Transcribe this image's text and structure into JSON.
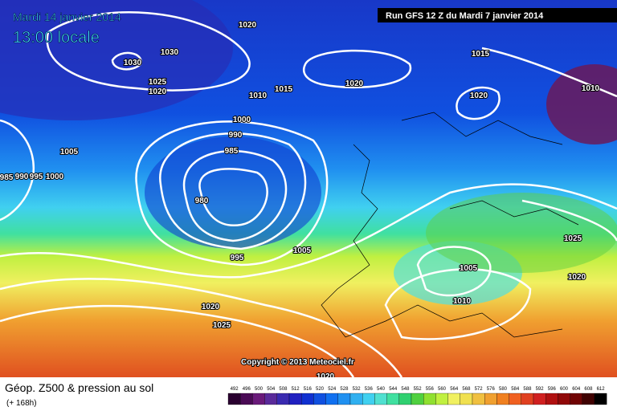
{
  "header": {
    "date": "Mardi 14 janvier 2014",
    "time": "13:00 locale",
    "run": "Run GFS 12 Z du Mardi 7 janvier 2014"
  },
  "isobar_labels": [
    "1020",
    "1030",
    "1030",
    "1025",
    "1020",
    "1015",
    "1010",
    "1020",
    "1015",
    "1020",
    "1010",
    "1000",
    "990",
    "985",
    "1005",
    "985",
    "990",
    "995",
    "1000",
    "980",
    "995",
    "1005",
    "1005",
    "1010",
    "1025",
    "1020",
    "1020",
    "1025",
    "1020"
  ],
  "copyright": "Copyright © 2013 Meteociel.fr",
  "footer": {
    "title": "Géop. Z500 & pression au sol",
    "subtitle": "(+ 168h)"
  },
  "color_scale": {
    "values": [
      492,
      496,
      500,
      504,
      508,
      512,
      516,
      520,
      524,
      528,
      532,
      536,
      540,
      544,
      548,
      552,
      556,
      560,
      564,
      568,
      572,
      576,
      580,
      584,
      588,
      592,
      596,
      600,
      604,
      608,
      612
    ],
    "colors": [
      "#2a0030",
      "#4a0a55",
      "#6a1a7a",
      "#5a2a9a",
      "#3a2ab0",
      "#2020c0",
      "#1030d0",
      "#1050e0",
      "#1070f0",
      "#2090f0",
      "#30b0f0",
      "#40d0f0",
      "#50e0d0",
      "#40e0a0",
      "#30d070",
      "#50d040",
      "#90e030",
      "#c0f040",
      "#f0f060",
      "#f0e050",
      "#f0c040",
      "#f0a030",
      "#f08020",
      "#f06020",
      "#e04020",
      "#d02020",
      "#b01010",
      "#900808",
      "#700404",
      "#400202",
      "#000000"
    ]
  }
}
